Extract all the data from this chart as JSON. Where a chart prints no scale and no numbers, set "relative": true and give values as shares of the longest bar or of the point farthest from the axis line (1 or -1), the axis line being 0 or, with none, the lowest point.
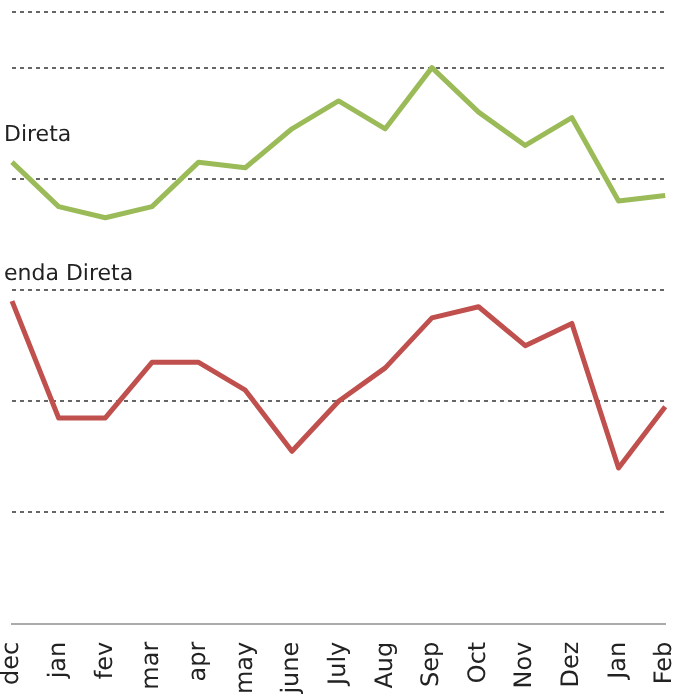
{
  "chart_data": {
    "type": "line",
    "relative": true,
    "grid": "y",
    "legend": false,
    "marker": "none",
    "line_style": "solid",
    "categories": [
      "dec",
      "jan",
      "fev",
      "mar",
      "apr",
      "may",
      "june",
      "July",
      "Aug",
      "Sep",
      "Oct",
      "Nov",
      "Dez",
      "Jan",
      "Feb"
    ],
    "series": [
      {
        "name": "Direta",
        "color": "#9bbb59",
        "values": [
          0.83,
          0.75,
          0.73,
          0.75,
          0.83,
          0.82,
          0.89,
          0.94,
          0.89,
          1,
          0.92,
          0.86,
          0.91,
          0.76,
          0.77
        ]
      },
      {
        "name": "enda Direta",
        "color": "#c0504d",
        "values": [
          0.58,
          0.37,
          0.37,
          0.47,
          0.47,
          0.42,
          0.31,
          0.4,
          0.46,
          0.55,
          0.57,
          0.5,
          0.54,
          0.28,
          0.39
        ]
      }
    ]
  }
}
